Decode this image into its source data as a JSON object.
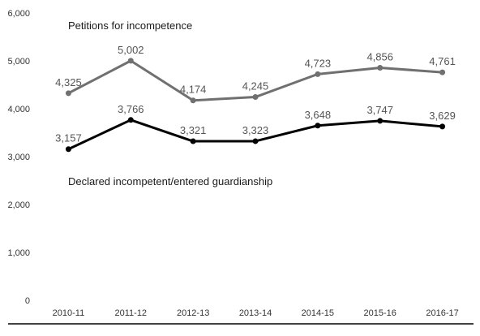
{
  "chart_data": {
    "type": "line",
    "categories": [
      "2010-11",
      "2011-12",
      "2012-13",
      "2013-14",
      "2014-15",
      "2015-16",
      "2016-17"
    ],
    "y_tick_labels": [
      "0",
      "1,000",
      "2,000",
      "3,000",
      "4,000",
      "5,000",
      "6,000"
    ],
    "ylim": [
      0,
      6000
    ],
    "grid": false,
    "series": [
      {
        "name": "Petitions for incompetence",
        "values": [
          4325,
          5002,
          4174,
          4245,
          4723,
          4856,
          4761
        ],
        "labels": [
          "4,325",
          "5,002",
          "4,174",
          "4,245",
          "4,723",
          "4,856",
          "4,761"
        ],
        "color": "#707070"
      },
      {
        "name": "Declared incompetent/entered guardianship",
        "values": [
          3157,
          3766,
          3321,
          3323,
          3648,
          3747,
          3629
        ],
        "labels": [
          "3,157",
          "3,766",
          "3,321",
          "3,323",
          "3,648",
          "3,747",
          "3,629"
        ],
        "color": "#000000"
      }
    ]
  }
}
